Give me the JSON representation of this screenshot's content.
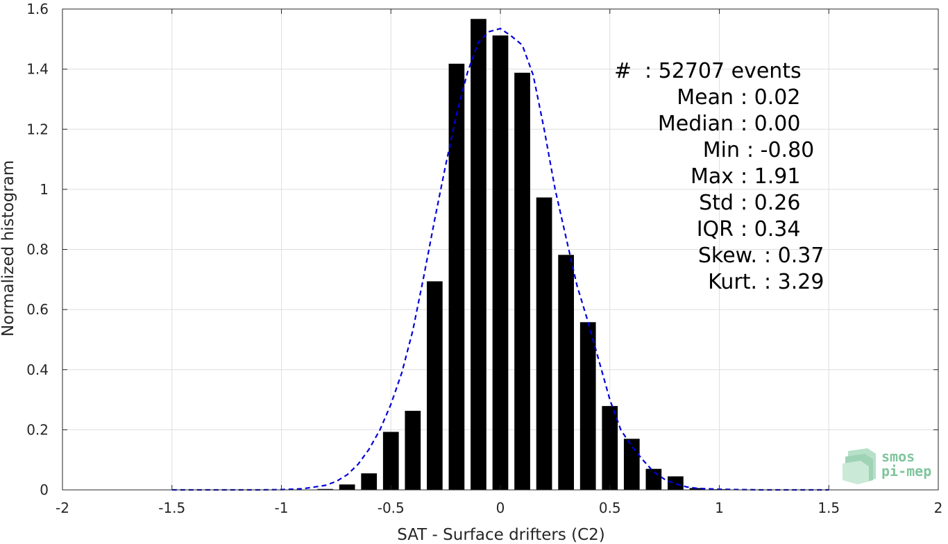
{
  "chart_data": {
    "type": "bar",
    "xlabel": "SAT - Surface drifters (C2)",
    "ylabel": "Normalized histogram",
    "xlim": [
      -2,
      2
    ],
    "ylim": [
      0,
      1.6
    ],
    "xticks": [
      -2,
      -1.5,
      -1,
      -0.5,
      0,
      0.5,
      1,
      1.5,
      2
    ],
    "xtick_labels": [
      "-2",
      "-1.5",
      "-1",
      "-0.5",
      "0",
      "0.5",
      "1",
      "1.5",
      "2"
    ],
    "yticks": [
      0,
      0.2,
      0.4,
      0.6,
      0.8,
      1,
      1.2,
      1.4,
      1.6
    ],
    "ytick_labels": [
      "0",
      "0.2",
      "0.4",
      "0.6",
      "0.8",
      "1",
      "1.2",
      "1.4",
      "1.6"
    ],
    "grid": true,
    "bar_color": "#000000",
    "bars": {
      "x": [
        -0.8,
        -0.7,
        -0.6,
        -0.5,
        -0.4,
        -0.3,
        -0.2,
        -0.1,
        0.0,
        0.1,
        0.2,
        0.3,
        0.4,
        0.5,
        0.6,
        0.7,
        0.8,
        0.9,
        1.0
      ],
      "values": [
        0.003,
        0.018,
        0.055,
        0.193,
        0.263,
        0.694,
        1.418,
        1.567,
        1.512,
        1.388,
        0.973,
        0.782,
        0.558,
        0.279,
        0.17,
        0.07,
        0.045,
        0.006,
        0.002
      ]
    },
    "fit_curve": {
      "style": "dashed",
      "color": "#0000dd",
      "x": [
        -1.5,
        -1.4,
        -1.3,
        -1.2,
        -1.1,
        -1.0,
        -0.9,
        -0.8,
        -0.75,
        -0.7,
        -0.65,
        -0.6,
        -0.55,
        -0.5,
        -0.45,
        -0.4,
        -0.35,
        -0.3,
        -0.25,
        -0.2,
        -0.15,
        -0.1,
        -0.05,
        0.0,
        0.05,
        0.1,
        0.15,
        0.2,
        0.25,
        0.3,
        0.35,
        0.4,
        0.45,
        0.5,
        0.55,
        0.6,
        0.65,
        0.7,
        0.75,
        0.8,
        0.85,
        0.9,
        1.0,
        1.1,
        1.2,
        1.3,
        1.4,
        1.5
      ],
      "y": [
        0.0,
        0.0,
        0.0,
        0.0,
        0.0,
        0.001,
        0.004,
        0.015,
        0.028,
        0.05,
        0.085,
        0.135,
        0.2,
        0.285,
        0.39,
        0.53,
        0.71,
        0.9,
        1.08,
        1.25,
        1.39,
        1.49,
        1.525,
        1.535,
        1.51,
        1.48,
        1.38,
        1.2,
        1.0,
        0.84,
        0.68,
        0.56,
        0.43,
        0.3,
        0.2,
        0.145,
        0.1,
        0.06,
        0.035,
        0.02,
        0.01,
        0.005,
        0.002,
        0.001,
        0.0,
        0.0,
        0.0,
        0.0
      ]
    },
    "stats": [
      {
        "label": "#",
        "value": ": 52707 events"
      },
      {
        "label": "Mean",
        "value": ": 0.02"
      },
      {
        "label": "Median",
        "value": ": 0.00"
      },
      {
        "label": "Min",
        "value": ": -0.80"
      },
      {
        "label": "Max",
        "value": ": 1.91"
      },
      {
        "label": "Std",
        "value": ": 0.26"
      },
      {
        "label": "IQR",
        "value": ": 0.34"
      },
      {
        "label": "Skew.",
        "value": ": 0.37"
      },
      {
        "label": "Kurt.",
        "value": ": 3.29"
      }
    ]
  },
  "logo": {
    "line1": "smos",
    "line2": "pi-mep",
    "color": "#7fc59d"
  }
}
